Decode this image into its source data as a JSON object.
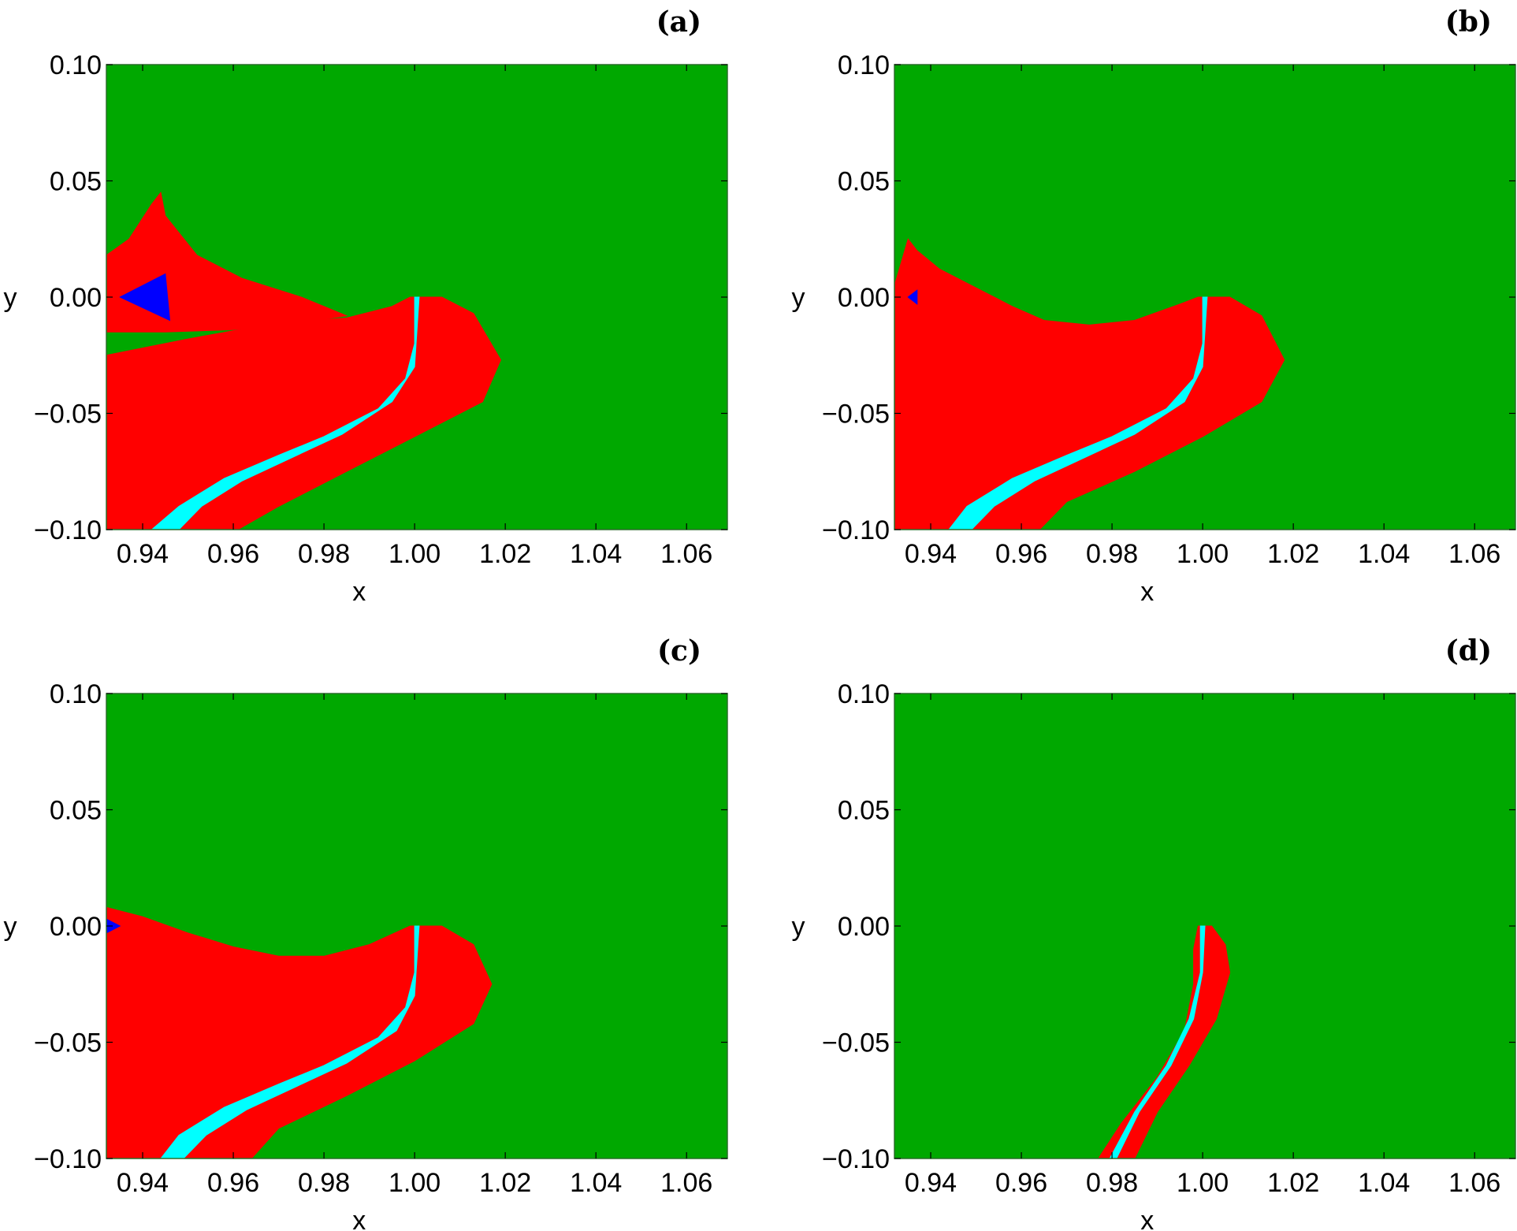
{
  "colors": {
    "green": "#00a800",
    "red": "#ff0000",
    "cyan": "#00ffff",
    "blue": "#0000ff"
  },
  "chart_data": [
    {
      "type": "heatmap",
      "panel_label": "(a)",
      "xlabel": "x",
      "ylabel": "y",
      "xlim": [
        0.932,
        1.069
      ],
      "ylim": [
        -0.1,
        0.1
      ],
      "x_ticks": [
        "0.94",
        "0.96",
        "0.98",
        "1.00",
        "1.02",
        "1.04",
        "1.06"
      ],
      "y_ticks": [
        "0.10",
        "0.05",
        "0.00",
        "−0.05",
        "−0.10"
      ],
      "background": "green",
      "regions": [
        {
          "color": "red",
          "points": [
            [
              0.932,
              -0.025
            ],
            [
              0.95,
              -0.018
            ],
            [
              0.97,
              -0.011
            ],
            [
              0.985,
              -0.009
            ],
            [
              0.995,
              -0.004
            ],
            [
              0.999,
              0.0
            ],
            [
              1.006,
              0.0
            ],
            [
              1.013,
              -0.007
            ],
            [
              1.019,
              -0.027
            ],
            [
              1.015,
              -0.045
            ],
            [
              1.0,
              -0.06
            ],
            [
              0.985,
              -0.075
            ],
            [
              0.97,
              -0.09
            ],
            [
              0.961,
              -0.1
            ],
            [
              0.932,
              -0.1
            ]
          ]
        },
        {
          "color": "red",
          "points": [
            [
              0.932,
              0.0
            ],
            [
              0.932,
              0.018
            ],
            [
              0.937,
              0.025
            ],
            [
              0.942,
              0.04
            ],
            [
              0.944,
              0.045
            ],
            [
              0.945,
              0.035
            ],
            [
              0.952,
              0.018
            ],
            [
              0.962,
              0.008
            ],
            [
              0.975,
              0.0
            ],
            [
              0.985,
              -0.008
            ],
            [
              0.975,
              -0.011
            ],
            [
              0.96,
              -0.014
            ],
            [
              0.945,
              -0.015
            ],
            [
              0.932,
              -0.015
            ]
          ]
        },
        {
          "color": "cyan",
          "points": [
            [
              1.0,
              0.0
            ],
            [
              1.0,
              -0.02
            ],
            [
              0.998,
              -0.035
            ],
            [
              0.992,
              -0.048
            ],
            [
              0.98,
              -0.06
            ],
            [
              0.97,
              -0.068
            ],
            [
              0.958,
              -0.078
            ],
            [
              0.948,
              -0.09
            ],
            [
              0.942,
              -0.1
            ],
            [
              0.948,
              -0.1
            ],
            [
              0.953,
              -0.09
            ],
            [
              0.962,
              -0.079
            ],
            [
              0.973,
              -0.069
            ],
            [
              0.984,
              -0.059
            ],
            [
              0.995,
              -0.045
            ],
            [
              1.0,
              -0.03
            ],
            [
              1.001,
              0.0
            ]
          ]
        },
        {
          "color": "blue",
          "points": [
            [
              0.935,
              0.0
            ],
            [
              0.945,
              0.01
            ],
            [
              0.946,
              -0.01
            ]
          ]
        }
      ]
    },
    {
      "type": "heatmap",
      "panel_label": "(b)",
      "xlabel": "x",
      "ylabel": "y",
      "xlim": [
        0.932,
        1.069
      ],
      "ylim": [
        -0.1,
        0.1
      ],
      "x_ticks": [
        "0.94",
        "0.96",
        "0.98",
        "1.00",
        "1.02",
        "1.04",
        "1.06"
      ],
      "y_ticks": [
        "0.10",
        "0.05",
        "0.00",
        "−0.05",
        "−0.10"
      ],
      "background": "green",
      "regions": [
        {
          "color": "red",
          "points": [
            [
              0.932,
              0.005
            ],
            [
              0.935,
              0.025
            ],
            [
              0.937,
              0.02
            ],
            [
              0.942,
              0.012
            ],
            [
              0.95,
              0.004
            ],
            [
              0.958,
              -0.004
            ],
            [
              0.965,
              -0.01
            ],
            [
              0.975,
              -0.012
            ],
            [
              0.985,
              -0.01
            ],
            [
              0.995,
              -0.003
            ],
            [
              0.999,
              0.0
            ],
            [
              1.006,
              0.0
            ],
            [
              1.013,
              -0.008
            ],
            [
              1.018,
              -0.027
            ],
            [
              1.013,
              -0.045
            ],
            [
              1.0,
              -0.06
            ],
            [
              0.985,
              -0.075
            ],
            [
              0.97,
              -0.088
            ],
            [
              0.964,
              -0.1
            ],
            [
              0.932,
              -0.1
            ]
          ]
        },
        {
          "color": "cyan",
          "points": [
            [
              1.0,
              0.0
            ],
            [
              1.0,
              -0.02
            ],
            [
              0.998,
              -0.035
            ],
            [
              0.992,
              -0.048
            ],
            [
              0.98,
              -0.06
            ],
            [
              0.97,
              -0.068
            ],
            [
              0.958,
              -0.078
            ],
            [
              0.948,
              -0.09
            ],
            [
              0.944,
              -0.1
            ],
            [
              0.949,
              -0.1
            ],
            [
              0.954,
              -0.09
            ],
            [
              0.963,
              -0.079
            ],
            [
              0.974,
              -0.069
            ],
            [
              0.985,
              -0.059
            ],
            [
              0.996,
              -0.045
            ],
            [
              1.0,
              -0.03
            ],
            [
              1.001,
              0.0
            ]
          ]
        },
        {
          "color": "blue",
          "points": [
            [
              0.935,
              0.0
            ],
            [
              0.937,
              0.003
            ],
            [
              0.937,
              -0.003
            ]
          ]
        }
      ]
    },
    {
      "type": "heatmap",
      "panel_label": "(c)",
      "xlabel": "x",
      "ylabel": "y",
      "xlim": [
        0.932,
        1.069
      ],
      "ylim": [
        -0.1,
        0.1
      ],
      "x_ticks": [
        "0.94",
        "0.96",
        "0.98",
        "1.00",
        "1.02",
        "1.04",
        "1.06"
      ],
      "y_ticks": [
        "0.10",
        "0.05",
        "0.00",
        "−0.05",
        "−0.10"
      ],
      "background": "green",
      "regions": [
        {
          "color": "red",
          "points": [
            [
              0.932,
              0.008
            ],
            [
              0.94,
              0.004
            ],
            [
              0.95,
              -0.003
            ],
            [
              0.96,
              -0.009
            ],
            [
              0.97,
              -0.013
            ],
            [
              0.98,
              -0.013
            ],
            [
              0.99,
              -0.008
            ],
            [
              0.999,
              0.0
            ],
            [
              1.006,
              0.0
            ],
            [
              1.013,
              -0.008
            ],
            [
              1.017,
              -0.025
            ],
            [
              1.013,
              -0.042
            ],
            [
              1.0,
              -0.058
            ],
            [
              0.985,
              -0.073
            ],
            [
              0.97,
              -0.087
            ],
            [
              0.964,
              -0.1
            ],
            [
              0.932,
              -0.1
            ]
          ]
        },
        {
          "color": "cyan",
          "points": [
            [
              1.0,
              0.0
            ],
            [
              1.0,
              -0.02
            ],
            [
              0.998,
              -0.035
            ],
            [
              0.992,
              -0.048
            ],
            [
              0.98,
              -0.06
            ],
            [
              0.97,
              -0.068
            ],
            [
              0.958,
              -0.078
            ],
            [
              0.948,
              -0.09
            ],
            [
              0.944,
              -0.1
            ],
            [
              0.949,
              -0.1
            ],
            [
              0.954,
              -0.09
            ],
            [
              0.963,
              -0.079
            ],
            [
              0.974,
              -0.069
            ],
            [
              0.985,
              -0.059
            ],
            [
              0.996,
              -0.045
            ],
            [
              1.0,
              -0.03
            ],
            [
              1.001,
              0.0
            ]
          ]
        },
        {
          "color": "blue",
          "points": [
            [
              0.932,
              0.003
            ],
            [
              0.935,
              0.0
            ],
            [
              0.932,
              -0.003
            ]
          ]
        }
      ]
    },
    {
      "type": "heatmap",
      "panel_label": "(d)",
      "xlabel": "x",
      "ylabel": "y",
      "xlim": [
        0.932,
        1.069
      ],
      "ylim": [
        -0.1,
        0.1
      ],
      "x_ticks": [
        "0.94",
        "0.96",
        "0.98",
        "1.00",
        "1.02",
        "1.04",
        "1.06"
      ],
      "y_ticks": [
        "0.10",
        "0.05",
        "0.00",
        "−0.05",
        "−0.10"
      ],
      "background": "green",
      "regions": [
        {
          "color": "red",
          "points": [
            [
              0.999,
              0.0
            ],
            [
              1.002,
              0.0
            ],
            [
              1.005,
              -0.008
            ],
            [
              1.006,
              -0.02
            ],
            [
              1.003,
              -0.04
            ],
            [
              0.997,
              -0.06
            ],
            [
              0.99,
              -0.08
            ],
            [
              0.985,
              -0.1
            ],
            [
              0.977,
              -0.1
            ],
            [
              0.982,
              -0.085
            ],
            [
              0.99,
              -0.065
            ],
            [
              0.996,
              -0.045
            ],
            [
              0.998,
              -0.025
            ],
            [
              0.998,
              -0.01
            ]
          ]
        },
        {
          "color": "cyan",
          "points": [
            [
              0.9995,
              0.0
            ],
            [
              1.0005,
              0.0
            ],
            [
              1.0,
              -0.02
            ],
            [
              0.998,
              -0.04
            ],
            [
              0.993,
              -0.06
            ],
            [
              0.986,
              -0.08
            ],
            [
              0.981,
              -0.1
            ],
            [
              0.9795,
              -0.1
            ],
            [
              0.985,
              -0.08
            ],
            [
              0.992,
              -0.06
            ],
            [
              0.997,
              -0.04
            ],
            [
              0.9995,
              -0.02
            ]
          ]
        }
      ]
    }
  ]
}
